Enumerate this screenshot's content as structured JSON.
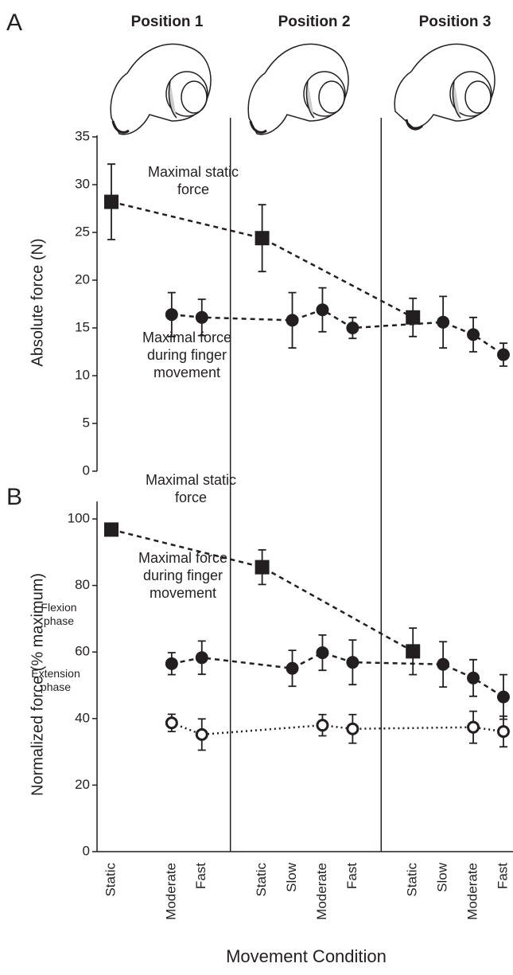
{
  "chart_data": [
    {
      "type": "line",
      "panel_label": "A",
      "headers": [
        "Position 1",
        "Position 2",
        "Position 3"
      ],
      "ylabel": "Absolute force (N)",
      "ylim": [
        0,
        35
      ],
      "yticks": [
        0,
        5,
        10,
        15,
        20,
        25,
        30,
        35
      ],
      "series": [
        {
          "name": "Maximal static force",
          "color": "#231f20",
          "marker": "square",
          "linestyle": "dashed",
          "values": [
            28.2,
            null,
            null,
            null,
            null,
            24.4,
            null,
            null,
            null,
            null,
            16.1,
            null,
            null,
            null
          ],
          "errors": [
            3.95,
            null,
            null,
            null,
            null,
            3.5,
            null,
            null,
            null,
            null,
            2.0,
            null,
            null,
            null
          ]
        },
        {
          "name": "Maximal force during finger movement",
          "color": "#231f20",
          "marker": "circle",
          "linestyle": "dashed",
          "values": [
            null,
            null,
            16.4,
            16.1,
            null,
            null,
            15.8,
            16.9,
            15.0,
            null,
            null,
            15.6,
            14.3,
            12.2
          ],
          "errors": [
            null,
            null,
            2.3,
            1.9,
            null,
            null,
            2.9,
            2.3,
            1.1,
            null,
            null,
            2.7,
            1.8,
            1.2
          ]
        }
      ]
    },
    {
      "type": "line",
      "panel_label": "B",
      "ylabel": "Normalized force (% maximum)",
      "xlabel": "Movement Condition",
      "annotation": "Maximal force during finger movement",
      "categories": [
        "Static",
        null,
        "Moderate",
        "Fast",
        null,
        "Static",
        "Slow",
        "Moderate",
        "Fast",
        null,
        "Static",
        "Slow",
        "Moderate",
        "Fast"
      ],
      "ylim": [
        0,
        100
      ],
      "yticks": [
        0,
        20,
        40,
        60,
        80,
        100
      ],
      "series": [
        {
          "name": "Maximal static force",
          "color": "#231f20",
          "marker": "square",
          "linestyle": "dashed",
          "values": [
            96.8,
            null,
            null,
            null,
            null,
            85.5,
            null,
            null,
            null,
            null,
            60.2,
            null,
            null,
            null
          ],
          "errors": [
            1.0,
            null,
            null,
            null,
            null,
            5.2,
            null,
            null,
            null,
            null,
            7.0,
            null,
            null,
            null
          ]
        },
        {
          "name": "Flexion phase",
          "color": "#231f20",
          "marker": "circle",
          "linestyle": "dashed",
          "values": [
            null,
            null,
            56.5,
            58.3,
            null,
            null,
            55.1,
            59.8,
            56.9,
            null,
            null,
            56.3,
            52.2,
            46.5
          ],
          "errors": [
            null,
            null,
            3.3,
            5.0,
            null,
            null,
            5.4,
            5.3,
            6.7,
            null,
            null,
            6.8,
            5.5,
            6.7
          ]
        },
        {
          "name": "Extension phase",
          "color": "#231f20",
          "marker": "open-circle",
          "linestyle": "dotted",
          "values": [
            null,
            null,
            38.7,
            35.2,
            null,
            null,
            null,
            38.0,
            36.9,
            null,
            null,
            null,
            37.4,
            36.1
          ],
          "errors": [
            null,
            null,
            2.6,
            4.7,
            null,
            null,
            null,
            3.2,
            4.3,
            null,
            null,
            null,
            4.8,
            4.6
          ]
        }
      ]
    }
  ]
}
